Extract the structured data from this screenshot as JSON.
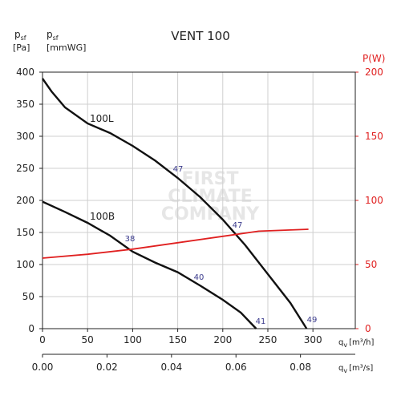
{
  "chart_data": {
    "type": "line",
    "title": "VENT 100",
    "y_label": {
      "symbol": "p",
      "sub": "sf",
      "unit": "[Pa]"
    },
    "y_label_alt": {
      "symbol": "p",
      "sub": "sf",
      "unit": "[mmWG]"
    },
    "y2_label": "P(W)",
    "x_label": {
      "symbol": "q",
      "sub": "v",
      "unit": "[m³/h]"
    },
    "x2_label": {
      "symbol": "q",
      "sub": "v",
      "unit": "[m³/s]"
    },
    "watermark": [
      "FIRST",
      "CLIMATE",
      "COMPANY"
    ],
    "xlim": [
      0,
      347
    ],
    "xticks": [
      0,
      50,
      100,
      150,
      200,
      250,
      300
    ],
    "x2lim": [
      0,
      0.097
    ],
    "x2ticks": [
      {
        "value": 0,
        "label": "0.00"
      },
      {
        "value": 0.02,
        "label": "0.02"
      },
      {
        "value": 0.04,
        "label": "0.04"
      },
      {
        "value": 0.06,
        "label": "0.06"
      },
      {
        "value": 0.08,
        "label": "0.08"
      }
    ],
    "ylim": [
      0,
      400
    ],
    "yticks": [
      0,
      50,
      100,
      150,
      200,
      250,
      300,
      350,
      400
    ],
    "y2lim": [
      0,
      200
    ],
    "y2ticks": [
      0,
      50,
      100,
      150,
      200
    ],
    "grid": true,
    "series": [
      {
        "name": "100L",
        "color": "#111111",
        "x": [
          0,
          10,
          25,
          50,
          75,
          100,
          125,
          150,
          175,
          200,
          225,
          250,
          275,
          293
        ],
        "y": [
          390,
          370,
          345,
          320,
          305,
          285,
          262,
          235,
          205,
          170,
          130,
          85,
          40,
          0
        ]
      },
      {
        "name": "100B",
        "color": "#111111",
        "x": [
          0,
          25,
          50,
          75,
          100,
          125,
          150,
          175,
          200,
          220,
          237
        ],
        "y": [
          198,
          182,
          165,
          145,
          120,
          103,
          88,
          67,
          45,
          25,
          0
        ]
      },
      {
        "color": "#e02020",
        "axis": "y2",
        "x": [
          0,
          50,
          100,
          150,
          200,
          240,
          295
        ],
        "y": [
          55,
          58,
          62,
          67,
          72,
          76,
          77.5
        ]
      }
    ],
    "annotations": [
      "47",
      "47",
      "38",
      "40",
      "41",
      "49"
    ]
  }
}
